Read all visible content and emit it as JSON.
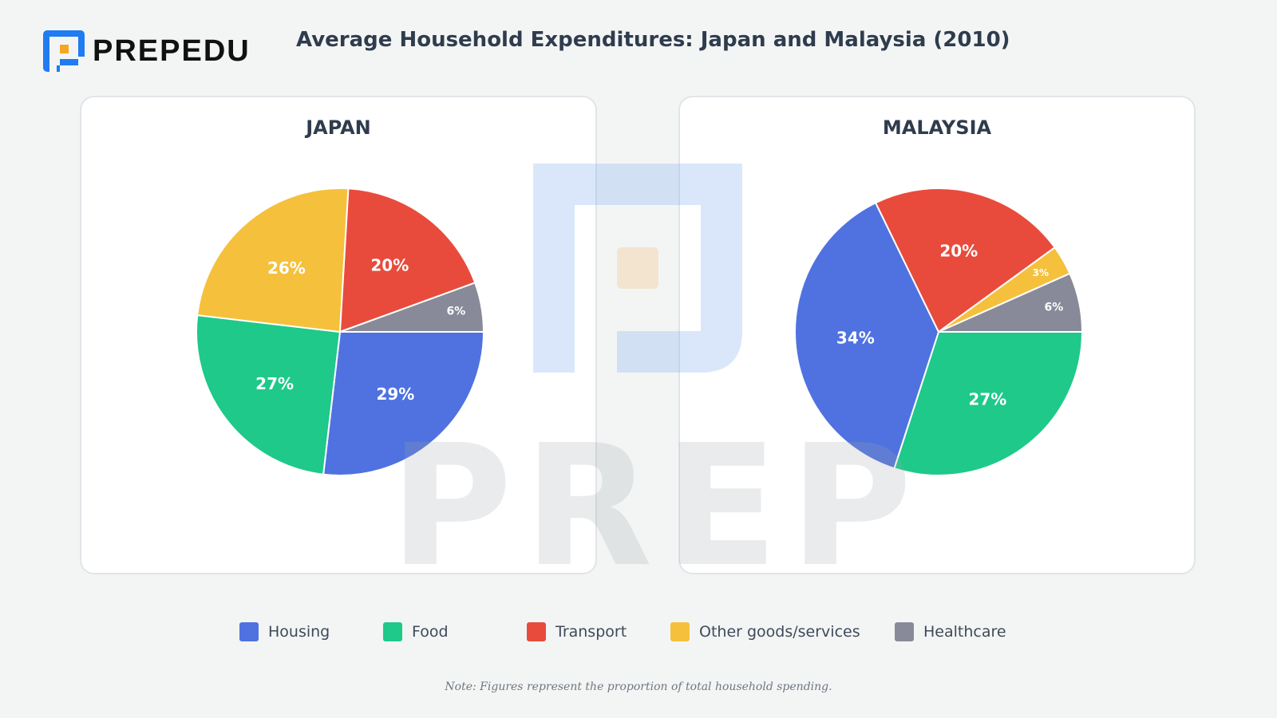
{
  "brand": {
    "name": "PREPEDU",
    "watermark_text": "PREP"
  },
  "title": "Average Household Expenditures: Japan and Malaysia (2010)",
  "colors": {
    "Housing": "#4f72e0",
    "Food": "#1ec98a",
    "Transport": "#e84b3c",
    "Other goods/services": "#f5c03c",
    "Healthcare": "#888a99",
    "brand_blue": "#1f7cf2",
    "brand_orange": "#f5a623"
  },
  "legend": {
    "items": [
      {
        "label": "Housing"
      },
      {
        "label": "Food"
      },
      {
        "label": "Transport"
      },
      {
        "label": "Other goods/services"
      },
      {
        "label": "Healthcare"
      }
    ]
  },
  "note": "Note: Figures represent the proportion of total household spending.",
  "chart_data": [
    {
      "type": "pie",
      "title": "JAPAN",
      "start_category": "Housing",
      "direction": "clockwise from 3 o'clock",
      "slices": [
        {
          "category": "Housing",
          "value": 29,
          "label": "29%"
        },
        {
          "category": "Food",
          "value": 27,
          "label": "27%"
        },
        {
          "category": "Other goods/services",
          "value": 26,
          "label": "26%"
        },
        {
          "category": "Transport",
          "value": 20,
          "label": "20%"
        },
        {
          "category": "Healthcare",
          "value": 6,
          "label": "6%"
        }
      ]
    },
    {
      "type": "pie",
      "title": "MALAYSIA",
      "start_category": "Food",
      "direction": "clockwise from 3 o'clock",
      "slices": [
        {
          "category": "Food",
          "value": 27,
          "label": "27%"
        },
        {
          "category": "Housing",
          "value": 34,
          "label": "34%"
        },
        {
          "category": "Transport",
          "value": 20,
          "label": "20%"
        },
        {
          "category": "Other goods/services",
          "value": 3,
          "label": "3%"
        },
        {
          "category": "Healthcare",
          "value": 6,
          "label": "6%"
        }
      ]
    }
  ]
}
